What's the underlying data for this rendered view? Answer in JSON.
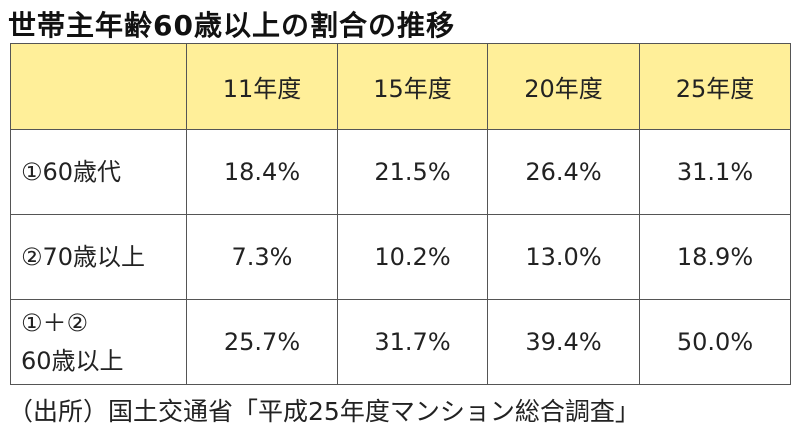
{
  "title": "世帯主年齢60歳以上の割合の推移",
  "table": {
    "columns": [
      "11年度",
      "15年度",
      "20年度",
      "25年度"
    ],
    "rows": [
      {
        "label_lines": [
          "①60歳代"
        ],
        "values": [
          "18.4%",
          "21.5%",
          "26.4%",
          "31.1%"
        ]
      },
      {
        "label_lines": [
          "②70歳以上"
        ],
        "values": [
          "7.3%",
          "10.2%",
          "13.0%",
          "18.9%"
        ]
      },
      {
        "label_lines": [
          "①＋②",
          "60歳以上"
        ],
        "values": [
          "25.7%",
          "31.7%",
          "39.4%",
          "50.0%"
        ]
      }
    ]
  },
  "source": "（出所）国土交通省「平成25年度マンション総合調査」",
  "colors": {
    "header_background": "#ffef99",
    "border": "#555555",
    "text": "#222222"
  }
}
